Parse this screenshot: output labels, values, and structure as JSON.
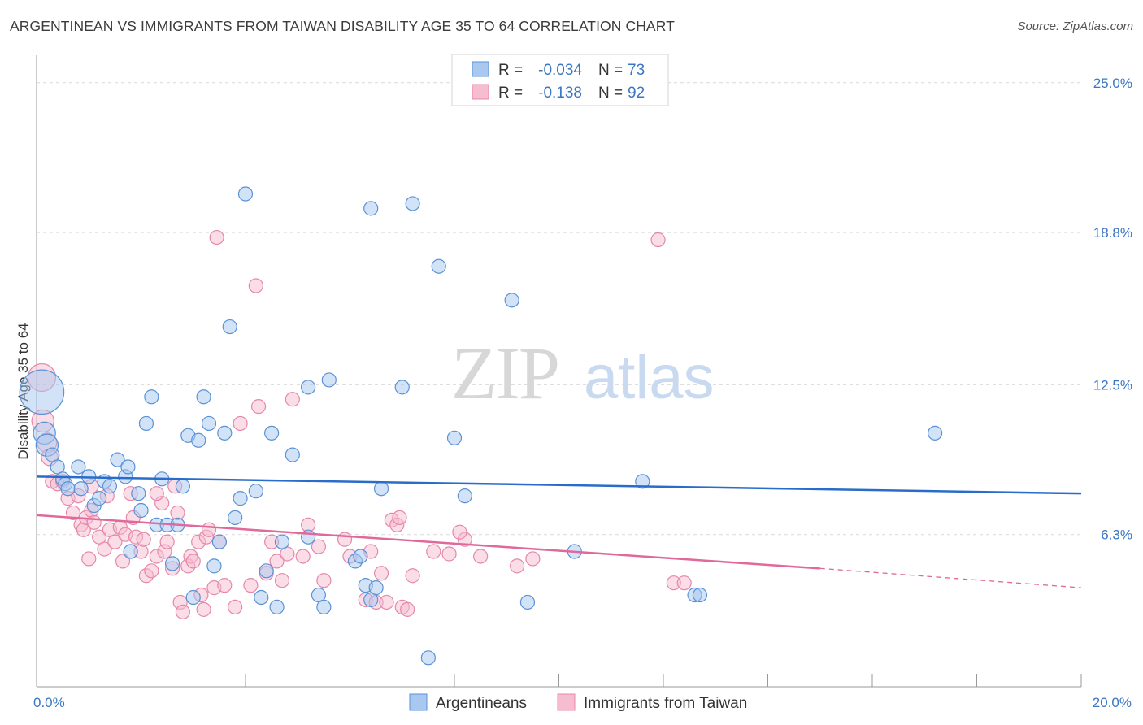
{
  "header": {
    "title": "ARGENTINEAN VS IMMIGRANTS FROM TAIWAN DISABILITY AGE 35 TO 64 CORRELATION CHART",
    "source": "Source: ZipAtlas.com"
  },
  "colors": {
    "blue_fill": "#a8c8f0",
    "blue_stroke": "#5b92d6",
    "blue_line": "#2a6cc9",
    "pink_fill": "#f6bcd0",
    "pink_stroke": "#e588aa",
    "pink_line": "#e0689a",
    "tick_text": "#3a76c4",
    "grid": "#d9d9d9"
  },
  "watermark": {
    "zip": "ZIP",
    "atlas": "atlas"
  },
  "legend": {
    "rows": [
      {
        "r_label": "R = ",
        "r_value": "-0.034",
        "n_label": "N = ",
        "n_value": "73"
      },
      {
        "r_label": "R = ",
        "r_value": "-0.138",
        "n_label": "N = ",
        "n_value": "92"
      }
    ]
  },
  "chart_data": {
    "type": "scatter",
    "title": "ARGENTINEAN VS IMMIGRANTS FROM TAIWAN DISABILITY AGE 35 TO 64 CORRELATION CHART",
    "xlabel": "",
    "ylabel": "Disability Age 35 to 64",
    "xlim": [
      0,
      20
    ],
    "ylim": [
      0,
      25.8
    ],
    "x_tick_labels": [
      "0.0%",
      "20.0%"
    ],
    "y_ticks": [
      6.3,
      12.5,
      18.8,
      25.0
    ],
    "y_tick_labels": [
      "6.3%",
      "12.5%",
      "18.8%",
      "25.0%"
    ],
    "grid": true,
    "legend_position": "top-center",
    "series": [
      {
        "name": "Argentineans",
        "r": -0.034,
        "n": 73,
        "trend": {
          "x": [
            0,
            20
          ],
          "y": [
            8.7,
            8.0
          ]
        },
        "points": [
          [
            0.1,
            12.2,
            3.2
          ],
          [
            0.15,
            10.5,
            1.6
          ],
          [
            0.2,
            10.0,
            1.6
          ],
          [
            0.3,
            9.6,
            1.0
          ],
          [
            0.4,
            9.1,
            1.0
          ],
          [
            0.5,
            8.6,
            1.0
          ],
          [
            0.55,
            8.4,
            1.0
          ],
          [
            0.6,
            8.2,
            1.0
          ],
          [
            0.8,
            9.1,
            1.0
          ],
          [
            0.85,
            8.2,
            1.0
          ],
          [
            1.0,
            8.7,
            1.0
          ],
          [
            1.1,
            7.5,
            1.0
          ],
          [
            1.2,
            7.8,
            1.0
          ],
          [
            1.3,
            8.5,
            1.0
          ],
          [
            1.4,
            8.3,
            1.0
          ],
          [
            1.55,
            9.4,
            1.0
          ],
          [
            1.7,
            8.7,
            1.0
          ],
          [
            1.75,
            9.1,
            1.0
          ],
          [
            1.8,
            5.6,
            1.0
          ],
          [
            1.95,
            8.0,
            1.0
          ],
          [
            2.0,
            7.3,
            1.0
          ],
          [
            2.1,
            10.9,
            1.0
          ],
          [
            2.2,
            12.0,
            1.0
          ],
          [
            2.3,
            6.7,
            1.0
          ],
          [
            2.4,
            8.6,
            1.0
          ],
          [
            2.5,
            6.7,
            1.0
          ],
          [
            2.6,
            5.1,
            1.0
          ],
          [
            2.7,
            6.7,
            1.0
          ],
          [
            2.8,
            8.3,
            1.0
          ],
          [
            2.9,
            10.4,
            1.0
          ],
          [
            3.0,
            3.7,
            1.0
          ],
          [
            3.1,
            10.2,
            1.0
          ],
          [
            3.2,
            12.0,
            1.0
          ],
          [
            3.3,
            10.9,
            1.0
          ],
          [
            3.4,
            5.0,
            1.0
          ],
          [
            3.5,
            6.0,
            1.0
          ],
          [
            3.6,
            10.5,
            1.0
          ],
          [
            3.7,
            14.9,
            1.0
          ],
          [
            3.8,
            7.0,
            1.0
          ],
          [
            3.9,
            7.8,
            1.0
          ],
          [
            4.0,
            20.4,
            1.0
          ],
          [
            4.2,
            8.1,
            1.0
          ],
          [
            4.3,
            3.7,
            1.0
          ],
          [
            4.4,
            4.8,
            1.0
          ],
          [
            4.5,
            10.5,
            1.0
          ],
          [
            4.6,
            3.3,
            1.0
          ],
          [
            4.7,
            6.0,
            1.0
          ],
          [
            4.9,
            9.6,
            1.0
          ],
          [
            5.2,
            12.4,
            1.0
          ],
          [
            5.4,
            3.8,
            1.0
          ],
          [
            5.5,
            3.3,
            1.0
          ],
          [
            5.6,
            12.7,
            1.0
          ],
          [
            6.1,
            5.2,
            1.0
          ],
          [
            6.2,
            5.4,
            1.0
          ],
          [
            6.3,
            4.2,
            1.0
          ],
          [
            6.4,
            3.6,
            1.0
          ],
          [
            6.5,
            4.1,
            1.0
          ],
          [
            6.4,
            19.8,
            1.0
          ],
          [
            6.6,
            8.2,
            1.0
          ],
          [
            7.0,
            12.4,
            1.0
          ],
          [
            7.2,
            20.0,
            1.0
          ],
          [
            7.5,
            1.2,
            1.0
          ],
          [
            7.7,
            17.4,
            1.0
          ],
          [
            8.0,
            10.3,
            1.0
          ],
          [
            8.2,
            7.9,
            1.0
          ],
          [
            9.1,
            16.0,
            1.0
          ],
          [
            9.4,
            3.5,
            1.0
          ],
          [
            10.3,
            5.6,
            1.0
          ],
          [
            11.6,
            8.5,
            1.0
          ],
          [
            12.6,
            3.8,
            1.0
          ],
          [
            12.7,
            3.8,
            1.0
          ],
          [
            17.2,
            10.5,
            1.0
          ],
          [
            5.2,
            6.2,
            1.0
          ]
        ]
      },
      {
        "name": "Immigrants from Taiwan",
        "r": -0.138,
        "n": 92,
        "trend": {
          "x": [
            0,
            15.0
          ],
          "y": [
            7.1,
            4.9
          ]
        },
        "trend_dashed": {
          "x": [
            15.0,
            20
          ],
          "y": [
            4.9,
            4.1
          ]
        },
        "points": [
          [
            0.1,
            12.8,
            2.0
          ],
          [
            0.12,
            11.0,
            1.6
          ],
          [
            0.2,
            10.1,
            1.4
          ],
          [
            0.25,
            9.5,
            1.2
          ],
          [
            0.3,
            8.5,
            1.0
          ],
          [
            0.4,
            8.4,
            1.0
          ],
          [
            0.5,
            8.5,
            1.0
          ],
          [
            0.6,
            7.8,
            1.0
          ],
          [
            0.7,
            7.2,
            1.0
          ],
          [
            0.8,
            7.9,
            1.0
          ],
          [
            0.85,
            6.7,
            1.0
          ],
          [
            0.9,
            6.5,
            1.0
          ],
          [
            0.95,
            7.0,
            1.0
          ],
          [
            1.0,
            5.3,
            1.0
          ],
          [
            1.05,
            7.3,
            1.0
          ],
          [
            1.1,
            6.8,
            1.0
          ],
          [
            1.2,
            6.2,
            1.0
          ],
          [
            1.3,
            5.7,
            1.0
          ],
          [
            1.35,
            7.9,
            1.0
          ],
          [
            1.4,
            6.5,
            1.0
          ],
          [
            1.5,
            6.0,
            1.0
          ],
          [
            1.6,
            6.6,
            1.0
          ],
          [
            1.65,
            5.2,
            1.0
          ],
          [
            1.7,
            6.3,
            1.0
          ],
          [
            1.8,
            8.0,
            1.0
          ],
          [
            1.85,
            7.0,
            1.0
          ],
          [
            1.9,
            6.2,
            1.0
          ],
          [
            2.0,
            5.6,
            1.0
          ],
          [
            2.05,
            6.1,
            1.0
          ],
          [
            2.1,
            4.6,
            1.0
          ],
          [
            2.2,
            4.8,
            1.0
          ],
          [
            2.3,
            5.4,
            1.0
          ],
          [
            2.4,
            7.6,
            1.0
          ],
          [
            2.45,
            5.6,
            1.0
          ],
          [
            2.5,
            6.0,
            1.0
          ],
          [
            2.6,
            4.9,
            1.0
          ],
          [
            2.65,
            8.3,
            1.0
          ],
          [
            2.7,
            7.2,
            1.0
          ],
          [
            2.75,
            3.5,
            1.0
          ],
          [
            2.8,
            3.1,
            1.0
          ],
          [
            2.9,
            5.0,
            1.0
          ],
          [
            2.95,
            5.4,
            1.0
          ],
          [
            3.0,
            5.2,
            1.0
          ],
          [
            3.1,
            6.0,
            1.0
          ],
          [
            3.15,
            3.8,
            1.0
          ],
          [
            3.2,
            3.2,
            1.0
          ],
          [
            3.25,
            6.2,
            1.0
          ],
          [
            3.3,
            6.5,
            1.0
          ],
          [
            3.4,
            4.1,
            1.0
          ],
          [
            3.45,
            18.6,
            1.0
          ],
          [
            3.5,
            6.0,
            1.0
          ],
          [
            3.6,
            4.2,
            1.0
          ],
          [
            3.8,
            3.3,
            1.0
          ],
          [
            3.9,
            10.9,
            1.0
          ],
          [
            4.1,
            4.2,
            1.0
          ],
          [
            4.2,
            16.6,
            1.0
          ],
          [
            4.25,
            11.6,
            1.0
          ],
          [
            4.4,
            4.7,
            1.0
          ],
          [
            4.5,
            6.0,
            1.0
          ],
          [
            4.6,
            5.2,
            1.0
          ],
          [
            4.7,
            4.4,
            1.0
          ],
          [
            4.9,
            11.9,
            1.0
          ],
          [
            5.1,
            5.4,
            1.0
          ],
          [
            5.2,
            6.7,
            1.0
          ],
          [
            5.5,
            4.4,
            1.0
          ],
          [
            5.9,
            6.1,
            1.0
          ],
          [
            6.0,
            5.4,
            1.0
          ],
          [
            6.3,
            3.6,
            1.0
          ],
          [
            6.4,
            5.6,
            1.0
          ],
          [
            6.5,
            3.5,
            1.0
          ],
          [
            6.6,
            4.7,
            1.0
          ],
          [
            6.7,
            3.5,
            1.0
          ],
          [
            6.8,
            6.9,
            1.0
          ],
          [
            6.9,
            6.7,
            1.0
          ],
          [
            7.0,
            3.3,
            1.0
          ],
          [
            7.1,
            3.2,
            1.0
          ],
          [
            7.2,
            4.6,
            1.0
          ],
          [
            7.6,
            5.6,
            1.0
          ],
          [
            7.9,
            5.5,
            1.0
          ],
          [
            8.2,
            6.1,
            1.0
          ],
          [
            8.5,
            5.4,
            1.0
          ],
          [
            9.2,
            5.0,
            1.0
          ],
          [
            9.5,
            5.3,
            1.0
          ],
          [
            12.2,
            4.3,
            1.0
          ],
          [
            12.4,
            4.3,
            1.0
          ],
          [
            11.9,
            18.5,
            1.0
          ],
          [
            1.05,
            8.3,
            1.0
          ],
          [
            2.3,
            8.0,
            1.0
          ],
          [
            8.1,
            6.4,
            1.0
          ],
          [
            6.95,
            7.0,
            1.0
          ],
          [
            5.4,
            5.8,
            1.0
          ],
          [
            4.8,
            5.5,
            1.0
          ]
        ]
      }
    ]
  },
  "axes": {
    "ylabel": "Disability Age 35 to 64",
    "x_left_label": "0.0%",
    "x_right_label": "20.0%"
  }
}
